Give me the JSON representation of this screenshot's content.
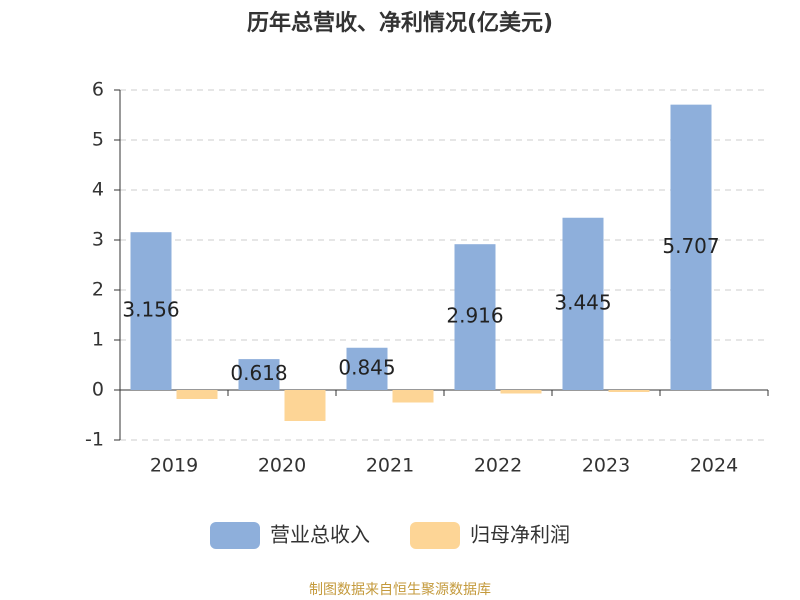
{
  "chart_data": {
    "type": "bar",
    "title": "历年总营收、净利情况(亿美元)",
    "categories": [
      "2019",
      "2020",
      "2021",
      "2022",
      "2023",
      "2024"
    ],
    "series": [
      {
        "name": "营业总收入",
        "color": "#8eafdb",
        "values": [
          3.156,
          0.618,
          0.845,
          2.916,
          3.445,
          5.707
        ],
        "show_labels": true
      },
      {
        "name": "归母净利润",
        "color": "#fdd596",
        "values": [
          -0.18,
          -0.62,
          -0.25,
          -0.07,
          -0.04,
          null
        ],
        "show_labels": false
      }
    ],
    "ylim": [
      -1,
      6
    ],
    "yticks": [
      -1,
      0,
      1,
      2,
      3,
      4,
      5,
      6
    ],
    "grid": true,
    "legend": "bottom",
    "source": "制图数据来自恒生聚源数据库"
  }
}
